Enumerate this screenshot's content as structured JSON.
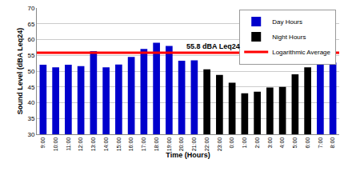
{
  "chart_data": {
    "type": "bar",
    "x_label": "Time (Hours)",
    "y_label": "Sound Level (dBA Leq24)",
    "categories": [
      "9:00",
      "10:00",
      "11:00",
      "12:00",
      "13:00",
      "14:00",
      "15:00",
      "16:00",
      "17:00",
      "18:00",
      "19:00",
      "20:00",
      "21:00",
      "22:00",
      "23:00",
      "0:00",
      "1:00",
      "2:00",
      "3:00",
      "4:00",
      "5:00",
      "6:00",
      "7:00",
      "8:00"
    ],
    "series": [
      {
        "name": "Day Hours",
        "color": "#0000cc",
        "values": [
          52,
          51.2,
          52,
          51.6,
          56.3,
          51.2,
          52.1,
          54.5,
          57,
          59,
          58,
          53.3,
          53.4,
          null,
          null,
          null,
          null,
          null,
          null,
          null,
          null,
          null,
          53.5,
          52.7
        ]
      },
      {
        "name": "Night Hours",
        "color": "#000000",
        "values": [
          null,
          null,
          null,
          null,
          null,
          null,
          null,
          null,
          null,
          null,
          null,
          null,
          null,
          50.6,
          48.8,
          46.3,
          43,
          43.5,
          44.8,
          45,
          49,
          51.2,
          null,
          null
        ]
      }
    ],
    "reference_line": {
      "name": "Logarithmic Average",
      "value": 55.8,
      "label": "55.8 dBA Leq24",
      "color": "#ff0000"
    },
    "ylim": [
      30,
      70
    ],
    "yticks": [
      30,
      35,
      40,
      45,
      50,
      55,
      60,
      65,
      70
    ],
    "grid": true,
    "legend": "upper right"
  }
}
